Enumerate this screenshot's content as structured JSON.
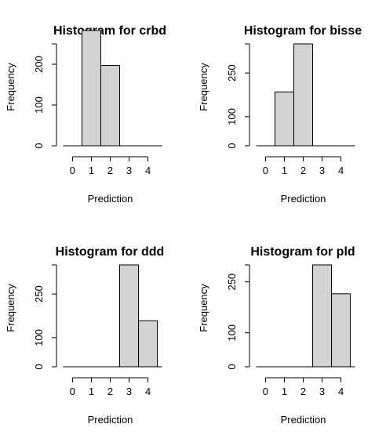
{
  "chart_data": [
    {
      "type": "bar",
      "title": "Histogram for crbd",
      "xlabel": "Prediction",
      "ylabel": "Frequency",
      "bin_edges": [
        0.5,
        1.5,
        2.5
      ],
      "values": [
        283,
        197
      ],
      "xticks": [
        0,
        1,
        2,
        3,
        4
      ],
      "xlim": [
        -0.6,
        4.6
      ],
      "yticks": [
        0,
        100,
        200
      ],
      "ylim": [
        0,
        250
      ],
      "bar_color": "#d3d3d3",
      "grid": false
    },
    {
      "type": "bar",
      "title": "Histogram for bisse",
      "xlabel": "Prediction",
      "ylabel": "Frequency",
      "bin_edges": [
        0.5,
        1.5,
        2.5
      ],
      "values": [
        185,
        350
      ],
      "xticks": [
        0,
        1,
        2,
        3,
        4
      ],
      "xlim": [
        -0.6,
        4.6
      ],
      "yticks": [
        0,
        100,
        250
      ],
      "ylim": [
        0,
        350
      ],
      "bar_color": "#d3d3d3",
      "grid": false
    },
    {
      "type": "bar",
      "title": "Histogram for ddd",
      "xlabel": "Prediction",
      "ylabel": "Frequency",
      "bin_edges": [
        2.5,
        3.5,
        4.5
      ],
      "values": [
        350,
        158
      ],
      "xticks": [
        0,
        1,
        2,
        3,
        4
      ],
      "xlim": [
        -0.6,
        4.6
      ],
      "yticks": [
        0,
        100,
        250
      ],
      "ylim": [
        0,
        350
      ],
      "bar_color": "#d3d3d3",
      "grid": false
    },
    {
      "type": "bar",
      "title": "Histogram for pld",
      "xlabel": "Prediction",
      "ylabel": "Frequency",
      "bin_edges": [
        2.5,
        3.5,
        4.5
      ],
      "values": [
        300,
        215
      ],
      "xticks": [
        0,
        1,
        2,
        3,
        4
      ],
      "xlim": [
        -0.6,
        4.6
      ],
      "yticks": [
        0,
        100,
        250
      ],
      "ylim": [
        0,
        300
      ],
      "bar_color": "#d3d3d3",
      "grid": false
    }
  ]
}
